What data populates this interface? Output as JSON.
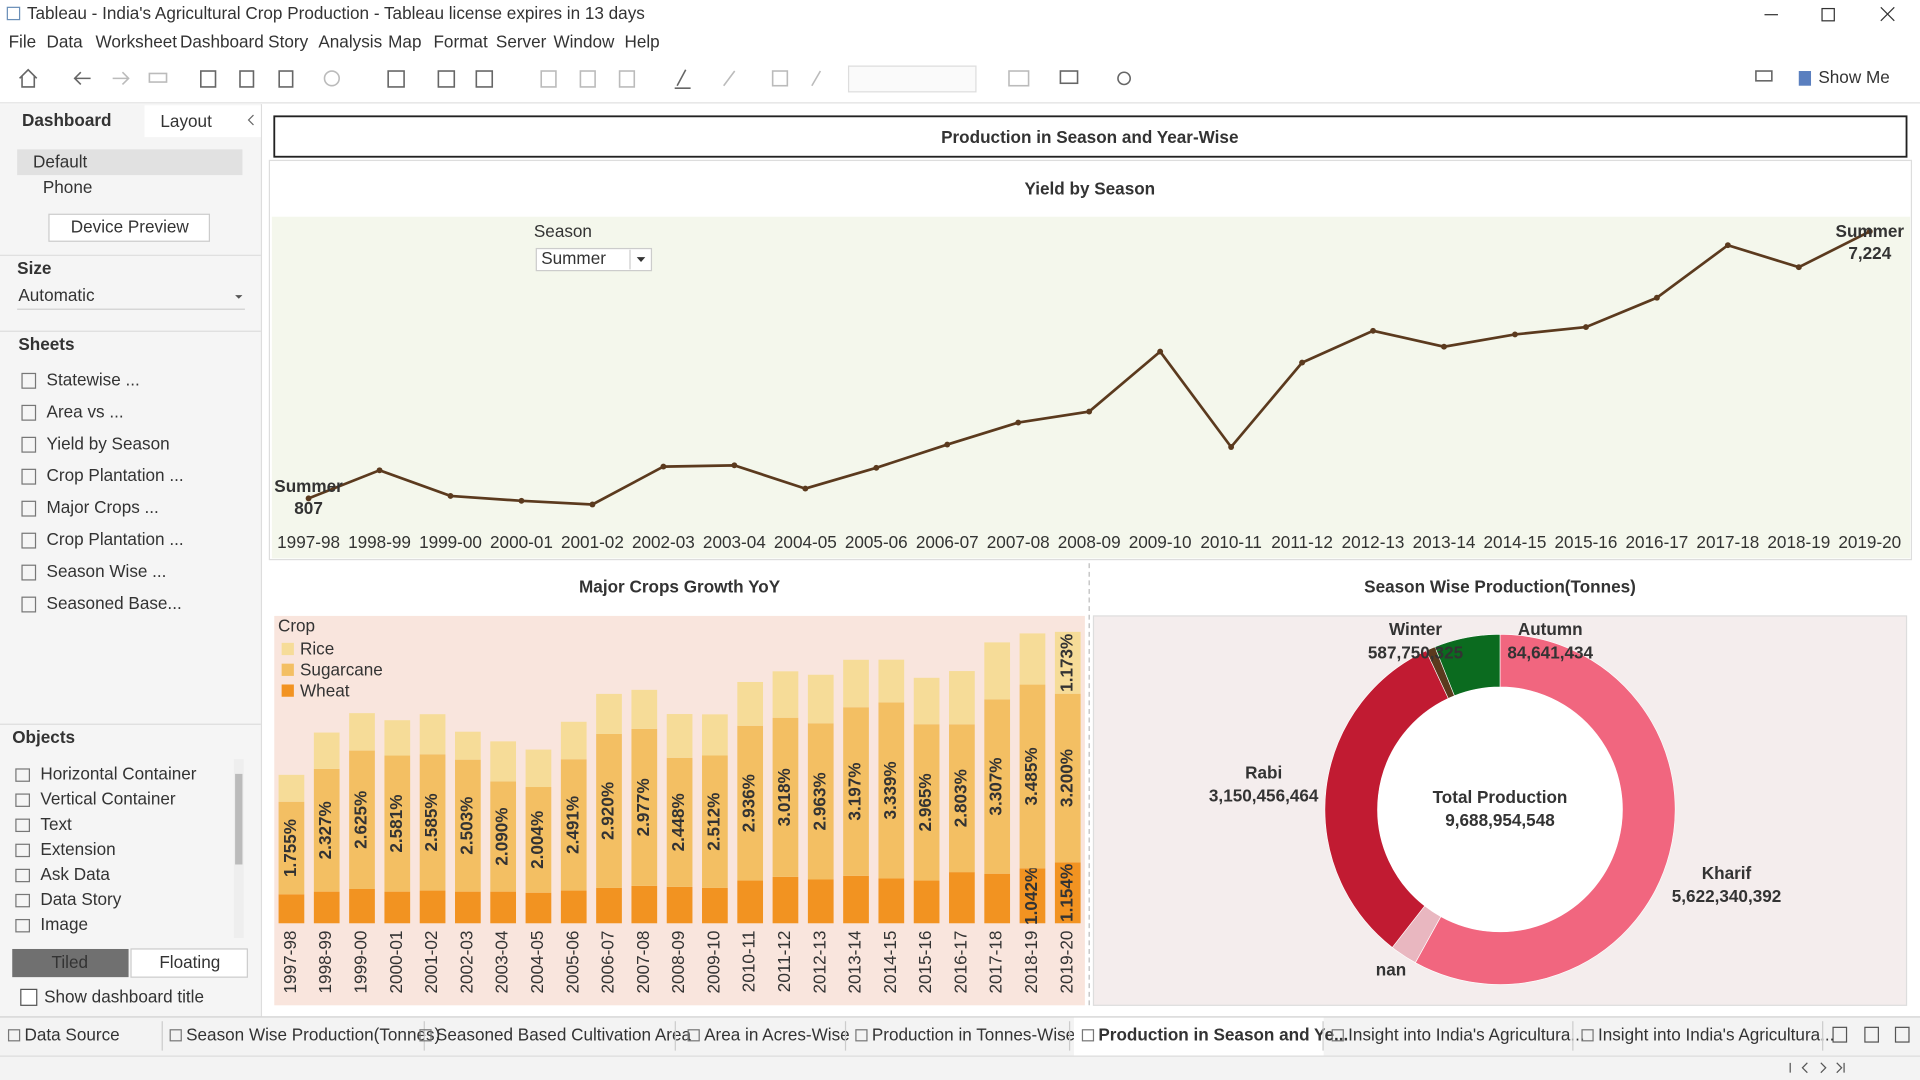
{
  "window": {
    "title": "Tableau - India's Agricultural Crop Production - Tableau license expires in 13 days"
  },
  "menu": [
    "File",
    "Data",
    "Worksheet",
    "Dashboard",
    "Story",
    "Analysis",
    "Map",
    "Format",
    "Server",
    "Window",
    "Help"
  ],
  "toolbar": {
    "show_me": "Show Me"
  },
  "side_panel": {
    "tabs": [
      "Dashboard",
      "Layout"
    ],
    "devices": [
      "Default",
      "Phone"
    ],
    "device_preview": "Device Preview",
    "size_heading": "Size",
    "size_value": "Automatic",
    "sheets_heading": "Sheets",
    "sheets": [
      "Statewise ...",
      "Area vs ...",
      "Yield by Season",
      "Crop Plantation ...",
      "Major Crops ...",
      "Crop Plantation ...",
      "Season Wise ...",
      "Seasoned Base..."
    ],
    "objects_heading": "Objects",
    "objects": [
      "Horizontal Container",
      "Vertical Container",
      "Text",
      "Extension",
      "Ask Data",
      "Data Story",
      "Image"
    ],
    "layout_modes": [
      "Tiled",
      "Floating"
    ],
    "show_title": "Show dashboard title"
  },
  "dashboard": {
    "title": "Production in Season and Year-Wise",
    "filter": {
      "label": "Season",
      "value": "Summer"
    }
  },
  "chart_data": [
    {
      "type": "line",
      "title": "Yield by Season",
      "x": [
        "1997-98",
        "1998-99",
        "1999-00",
        "2000-01",
        "2001-02",
        "2002-03",
        "2003-04",
        "2004-05",
        "2005-06",
        "2006-07",
        "2007-08",
        "2008-09",
        "2009-10",
        "2010-11",
        "2011-12",
        "2012-13",
        "2013-14",
        "2014-15",
        "2015-16",
        "2016-17",
        "2017-18",
        "2018-19",
        "2019-20"
      ],
      "series": [
        {
          "name": "Summer",
          "color": "#5b3a1e",
          "values": [
            807,
            1483,
            866,
            748,
            660,
            1571,
            1601,
            1042,
            1542,
            2101,
            2630,
            2894,
            4335,
            2042,
            4071,
            4835,
            4453,
            4747,
            4924,
            5630,
            6893,
            6364,
            7224
          ],
          "value_labels": [
            "807",
            null,
            null,
            null,
            null,
            null,
            null,
            null,
            null,
            null,
            null,
            null,
            null,
            null,
            null,
            null,
            null,
            null,
            null,
            null,
            null,
            null,
            "7,224"
          ]
        }
      ]
    },
    {
      "type": "bar",
      "stacked": true,
      "title": "Major Crops Growth YoY",
      "legend_title": "Crop",
      "categories": [
        "1997-98",
        "1998-99",
        "1999-00",
        "2000-01",
        "2001-02",
        "2002-03",
        "2003-04",
        "2004-05",
        "2005-06",
        "2006-07",
        "2007-08",
        "2008-09",
        "2009-10",
        "2010-11",
        "2011-12",
        "2012-13",
        "2013-14",
        "2014-15",
        "2015-16",
        "2016-17",
        "2017-18",
        "2018-19",
        "2019-20"
      ],
      "series": [
        {
          "name": "Rice",
          "color": "#f6dc98",
          "values": [
            0.51,
            0.69,
            0.71,
            0.67,
            0.76,
            0.53,
            0.76,
            0.71,
            0.71,
            0.76,
            0.74,
            0.83,
            0.78,
            0.83,
            0.88,
            0.92,
            0.9,
            0.81,
            0.88,
            1.01,
            1.08,
            0.97,
            1.173
          ],
          "value_labels": [
            null,
            null,
            null,
            null,
            null,
            null,
            null,
            null,
            null,
            null,
            null,
            null,
            null,
            null,
            null,
            null,
            null,
            null,
            null,
            null,
            null,
            null,
            "1.173%"
          ]
        },
        {
          "name": "Sugarcane",
          "color": "#f3bf63",
          "values": [
            1.755,
            2.327,
            2.625,
            2.581,
            2.585,
            2.503,
            2.09,
            2.004,
            2.491,
            2.92,
            2.977,
            2.448,
            2.512,
            2.936,
            3.018,
            2.963,
            3.197,
            3.339,
            2.965,
            2.803,
            3.307,
            3.485,
            3.2
          ],
          "value_labels": [
            "1.755%",
            "2.327%",
            "2.625%",
            "2.581%",
            "2.585%",
            "2.503%",
            "2.090%",
            "2.004%",
            "2.491%",
            "2.920%",
            "2.977%",
            "2.448%",
            "2.512%",
            "2.936%",
            "3.018%",
            "2.963%",
            "3.197%",
            "3.339%",
            "2.965%",
            "2.803%",
            "3.307%",
            "3.485%",
            "3.200%"
          ]
        },
        {
          "name": "Wheat",
          "color": "#f29321",
          "values": [
            0.55,
            0.6,
            0.65,
            0.6,
            0.62,
            0.6,
            0.6,
            0.58,
            0.62,
            0.67,
            0.71,
            0.69,
            0.67,
            0.81,
            0.88,
            0.83,
            0.9,
            0.85,
            0.81,
            0.97,
            0.94,
            1.042,
            1.154
          ],
          "value_labels": [
            null,
            null,
            null,
            null,
            null,
            null,
            null,
            null,
            null,
            null,
            null,
            null,
            null,
            null,
            null,
            null,
            null,
            null,
            null,
            null,
            null,
            "1.042%",
            "1.154%"
          ]
        }
      ]
    },
    {
      "type": "pie",
      "donut": true,
      "title": "Season Wise Production(Tonnes)",
      "categories": [
        "Kharif",
        "nan",
        "Rabi",
        "Autumn",
        "Winter"
      ],
      "values": [
        5622340392,
        243765933,
        3150456464,
        84641434,
        587750325
      ],
      "value_labels": [
        "5,622,340,392",
        null,
        "3,150,456,464",
        "84,641,434",
        "587,750,325"
      ],
      "colors": [
        "#f1667f",
        "#e9b7c0",
        "#c11b32",
        "#5b3a1e",
        "#0b6b1f"
      ],
      "total_label": "Total Production",
      "total": {
        "value": 9688954548,
        "label": "9,688,954,548"
      }
    }
  ],
  "sheet_tabs": [
    "Data Source",
    "Season Wise Production(Tonnes)",
    "Seasoned Based Cultivation Area",
    "Area in Acres-Wise",
    "Production in Tonnes-Wise",
    "Production in Season and Ye...",
    "Insight into India's Agricultura...",
    "Insight into India's Agricultura..."
  ]
}
